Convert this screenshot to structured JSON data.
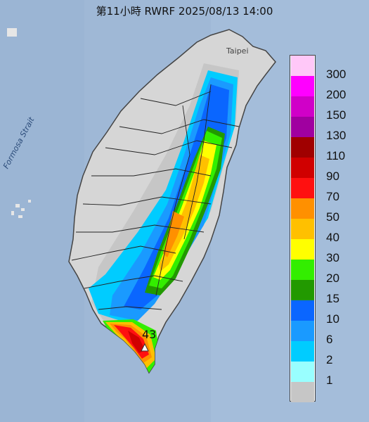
{
  "header": {
    "title": "第11小時  RWRF 2025/08/13 14:00"
  },
  "labels": {
    "strait": "Formosa Strait",
    "taipei": "Taipei",
    "station": "43"
  },
  "legend": {
    "bins": [
      {
        "label": "300",
        "color": "#ffc8f8"
      },
      {
        "label": "200",
        "color": "#ff00ff"
      },
      {
        "label": "150",
        "color": "#d000c8"
      },
      {
        "label": "130",
        "color": "#a000a0"
      },
      {
        "label": "110",
        "color": "#a00000"
      },
      {
        "label": "90",
        "color": "#d00000"
      },
      {
        "label": "70",
        "color": "#ff1010"
      },
      {
        "label": "50",
        "color": "#ff9000"
      },
      {
        "label": "40",
        "color": "#ffc000"
      },
      {
        "label": "30",
        "color": "#ffff00"
      },
      {
        "label": "20",
        "color": "#33ee00"
      },
      {
        "label": "15",
        "color": "#229900"
      },
      {
        "label": "10",
        "color": "#0a66ff"
      },
      {
        "label": "6",
        "color": "#1a9aff"
      },
      {
        "label": "2",
        "color": "#00ccff"
      },
      {
        "label": "1",
        "color": "#99ffff"
      },
      {
        "label": "",
        "color": "#c6c6c6"
      }
    ]
  },
  "colors": {
    "ocean": "#9fb8d6",
    "land": "#d6d6d6",
    "no_rain": "#c6c6c6"
  }
}
